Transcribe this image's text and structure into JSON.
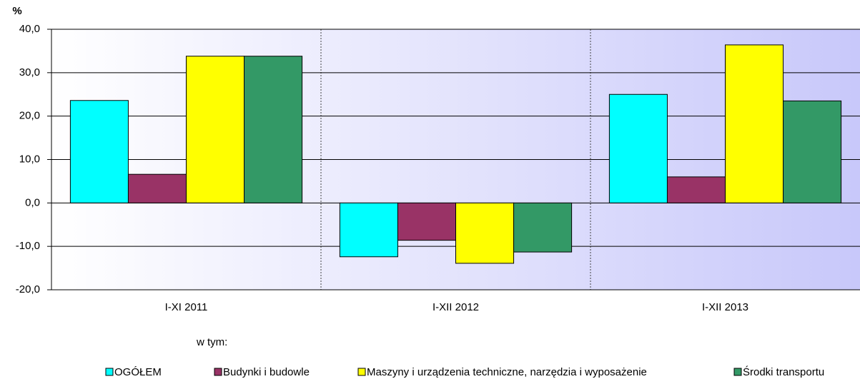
{
  "chart_data": {
    "type": "bar",
    "y_label": "%",
    "categories": [
      "I-XI 2011",
      "I-XII 2012",
      "I-XII 2013"
    ],
    "series": [
      {
        "name": "OGÓŁEM",
        "color": "#00ffff",
        "values": [
          23.6,
          -12.4,
          25.0
        ]
      },
      {
        "name": "Budynki i budowle",
        "color": "#993366",
        "values": [
          6.6,
          -8.6,
          6.0
        ]
      },
      {
        "name": "Maszyny i urządzenia techniczne, narzędzia i wyposażenie",
        "color": "#ffff00",
        "values": [
          33.8,
          -13.9,
          36.4
        ]
      },
      {
        "name": "Środki transportu",
        "color": "#339966",
        "values": [
          33.8,
          -11.3,
          23.5
        ]
      }
    ],
    "legend_title": "w tym:",
    "ylim": [
      -20,
      40
    ],
    "yticks": [
      {
        "value": -20,
        "label": "-20,0"
      },
      {
        "value": -10,
        "label": "-10,0"
      },
      {
        "value": 0,
        "label": "0,0"
      },
      {
        "value": 10,
        "label": "10,0"
      },
      {
        "value": 20,
        "label": "20,0"
      },
      {
        "value": 30,
        "label": "30,0"
      },
      {
        "value": 40,
        "label": "40,0"
      }
    ],
    "grid": true,
    "legend": "bottom"
  }
}
